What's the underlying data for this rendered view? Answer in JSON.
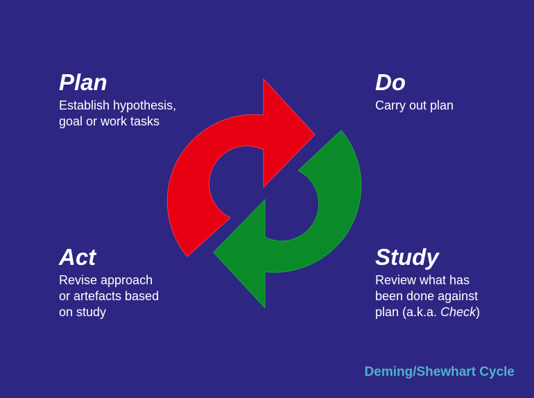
{
  "diagram": {
    "quadrants": {
      "plan": {
        "heading": "Plan",
        "lines": [
          "Establish hypothesis,",
          "goal or work tasks"
        ]
      },
      "do": {
        "heading": "Do",
        "lines": [
          "Carry out plan"
        ]
      },
      "act": {
        "heading": "Act",
        "lines": [
          "Revise approach",
          "or artefacts based",
          "on study"
        ]
      },
      "study": {
        "heading": "Study",
        "lines": [
          "Review what has",
          "been done against"
        ],
        "last_line_prefix": "plan (a.k.a. ",
        "last_line_emphasis": "Check",
        "last_line_suffix": ")"
      }
    },
    "caption": "Deming/Shewhart Cycle",
    "colors": {
      "background": "#2e2683",
      "red_arrow": "#e60012",
      "green_arrow": "#0b8a2a",
      "caption": "#4fb3c9",
      "text": "#ffffff"
    },
    "icons": {
      "red_arrow": "clockwise-arc-arrow-icon",
      "green_arrow": "clockwise-arc-arrow-icon"
    }
  }
}
